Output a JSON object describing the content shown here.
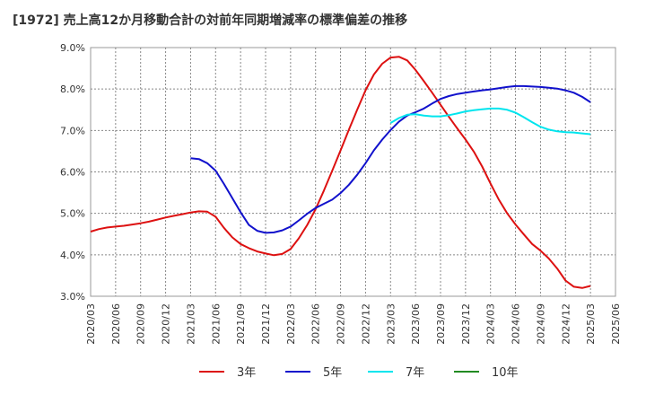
{
  "chart_data": {
    "type": "line",
    "title": "[1972]  売上高12か月移動合計の対前年同期増減率の標準偏差の推移",
    "xlabel": "",
    "ylabel": "",
    "ylim": [
      3.0,
      9.0
    ],
    "yticks": [
      "3.0%",
      "4.0%",
      "5.0%",
      "6.0%",
      "7.0%",
      "8.0%",
      "9.0%"
    ],
    "x_start": "2020-03",
    "x_end": "2025-06",
    "xticks": [
      "2020/03",
      "2020/06",
      "2020/09",
      "2020/12",
      "2021/03",
      "2021/06",
      "2021/09",
      "2021/12",
      "2022/03",
      "2022/06",
      "2022/09",
      "2022/12",
      "2023/03",
      "2023/06",
      "2023/09",
      "2023/12",
      "2024/03",
      "2024/06",
      "2024/09",
      "2024/12",
      "2025/03",
      "2025/06"
    ],
    "grid": true,
    "legend_position": "bottom",
    "series": [
      {
        "name": "3年",
        "color": "#dd1111",
        "points": [
          [
            "2020-03",
            4.56
          ],
          [
            "2020-04",
            4.62
          ],
          [
            "2020-05",
            4.66
          ],
          [
            "2020-06",
            4.68
          ],
          [
            "2020-07",
            4.7
          ],
          [
            "2020-08",
            4.73
          ],
          [
            "2020-09",
            4.76
          ],
          [
            "2020-10",
            4.8
          ],
          [
            "2020-11",
            4.85
          ],
          [
            "2020-12",
            4.9
          ],
          [
            "2021-01",
            4.94
          ],
          [
            "2021-02",
            4.98
          ],
          [
            "2021-03",
            5.02
          ],
          [
            "2021-04",
            5.05
          ],
          [
            "2021-05",
            5.04
          ],
          [
            "2021-06",
            4.92
          ],
          [
            "2021-07",
            4.65
          ],
          [
            "2021-08",
            4.42
          ],
          [
            "2021-09",
            4.26
          ],
          [
            "2021-10",
            4.16
          ],
          [
            "2021-11",
            4.08
          ],
          [
            "2021-12",
            4.03
          ],
          [
            "2022-01",
            3.99
          ],
          [
            "2022-02",
            4.02
          ],
          [
            "2022-03",
            4.14
          ],
          [
            "2022-04",
            4.4
          ],
          [
            "2022-05",
            4.72
          ],
          [
            "2022-06",
            5.1
          ],
          [
            "2022-07",
            5.55
          ],
          [
            "2022-08",
            6.03
          ],
          [
            "2022-09",
            6.52
          ],
          [
            "2022-10",
            7.02
          ],
          [
            "2022-11",
            7.5
          ],
          [
            "2022-12",
            7.97
          ],
          [
            "2023-01",
            8.35
          ],
          [
            "2023-02",
            8.61
          ],
          [
            "2023-03",
            8.76
          ],
          [
            "2023-04",
            8.78
          ],
          [
            "2023-05",
            8.69
          ],
          [
            "2023-06",
            8.46
          ],
          [
            "2023-07",
            8.19
          ],
          [
            "2023-08",
            7.91
          ],
          [
            "2023-09",
            7.62
          ],
          [
            "2023-10",
            7.33
          ],
          [
            "2023-11",
            7.05
          ],
          [
            "2023-12",
            6.78
          ],
          [
            "2024-01",
            6.49
          ],
          [
            "2024-02",
            6.13
          ],
          [
            "2024-03",
            5.72
          ],
          [
            "2024-04",
            5.33
          ],
          [
            "2024-05",
            5.0
          ],
          [
            "2024-06",
            4.73
          ],
          [
            "2024-07",
            4.49
          ],
          [
            "2024-08",
            4.26
          ],
          [
            "2024-09",
            4.1
          ],
          [
            "2024-10",
            3.91
          ],
          [
            "2024-11",
            3.67
          ],
          [
            "2024-12",
            3.38
          ],
          [
            "2025-01",
            3.23
          ],
          [
            "2025-02",
            3.2
          ],
          [
            "2025-03",
            3.25
          ]
        ]
      },
      {
        "name": "5年",
        "color": "#1111cc",
        "points": [
          [
            "2021-03",
            6.33
          ],
          [
            "2021-04",
            6.31
          ],
          [
            "2021-05",
            6.21
          ],
          [
            "2021-06",
            6.03
          ],
          [
            "2021-07",
            5.71
          ],
          [
            "2021-08",
            5.37
          ],
          [
            "2021-09",
            5.03
          ],
          [
            "2021-10",
            4.72
          ],
          [
            "2021-11",
            4.58
          ],
          [
            "2021-12",
            4.53
          ],
          [
            "2022-01",
            4.54
          ],
          [
            "2022-02",
            4.59
          ],
          [
            "2022-03",
            4.68
          ],
          [
            "2022-04",
            4.83
          ],
          [
            "2022-05",
            4.99
          ],
          [
            "2022-06",
            5.13
          ],
          [
            "2022-07",
            5.23
          ],
          [
            "2022-08",
            5.33
          ],
          [
            "2022-09",
            5.49
          ],
          [
            "2022-10",
            5.69
          ],
          [
            "2022-11",
            5.93
          ],
          [
            "2022-12",
            6.21
          ],
          [
            "2023-01",
            6.52
          ],
          [
            "2023-02",
            6.78
          ],
          [
            "2023-03",
            7.01
          ],
          [
            "2023-04",
            7.21
          ],
          [
            "2023-05",
            7.36
          ],
          [
            "2023-06",
            7.44
          ],
          [
            "2023-07",
            7.53
          ],
          [
            "2023-08",
            7.65
          ],
          [
            "2023-09",
            7.76
          ],
          [
            "2023-10",
            7.83
          ],
          [
            "2023-11",
            7.88
          ],
          [
            "2023-12",
            7.91
          ],
          [
            "2024-01",
            7.94
          ],
          [
            "2024-02",
            7.97
          ],
          [
            "2024-03",
            7.99
          ],
          [
            "2024-04",
            8.02
          ],
          [
            "2024-05",
            8.05
          ],
          [
            "2024-06",
            8.07
          ],
          [
            "2024-07",
            8.07
          ],
          [
            "2024-08",
            8.06
          ],
          [
            "2024-09",
            8.05
          ],
          [
            "2024-10",
            8.03
          ],
          [
            "2024-11",
            8.01
          ],
          [
            "2024-12",
            7.97
          ],
          [
            "2025-01",
            7.91
          ],
          [
            "2025-02",
            7.81
          ],
          [
            "2025-03",
            7.68
          ]
        ]
      },
      {
        "name": "7年",
        "color": "#00e5ee",
        "points": [
          [
            "2023-03",
            7.18
          ],
          [
            "2023-04",
            7.3
          ],
          [
            "2023-05",
            7.38
          ],
          [
            "2023-06",
            7.39
          ],
          [
            "2023-07",
            7.36
          ],
          [
            "2023-08",
            7.34
          ],
          [
            "2023-09",
            7.34
          ],
          [
            "2023-10",
            7.37
          ],
          [
            "2023-11",
            7.41
          ],
          [
            "2023-12",
            7.46
          ],
          [
            "2024-01",
            7.49
          ],
          [
            "2024-02",
            7.51
          ],
          [
            "2024-03",
            7.53
          ],
          [
            "2024-04",
            7.53
          ],
          [
            "2024-05",
            7.5
          ],
          [
            "2024-06",
            7.43
          ],
          [
            "2024-07",
            7.32
          ],
          [
            "2024-08",
            7.2
          ],
          [
            "2024-09",
            7.09
          ],
          [
            "2024-10",
            7.02
          ],
          [
            "2024-11",
            6.98
          ],
          [
            "2024-12",
            6.96
          ],
          [
            "2025-01",
            6.95
          ],
          [
            "2025-02",
            6.93
          ],
          [
            "2025-03",
            6.91
          ]
        ]
      },
      {
        "name": "10年",
        "color": "#228b22",
        "points": []
      }
    ]
  }
}
